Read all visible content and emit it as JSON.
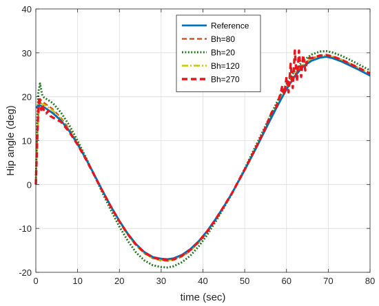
{
  "chart_data": {
    "type": "line",
    "title": "",
    "xlabel": "time (sec)",
    "ylabel": "Hip angle (deg)",
    "xlim": [
      0,
      80
    ],
    "ylim": [
      -20,
      40
    ],
    "xticks": [
      "0",
      "10",
      "20",
      "30",
      "40",
      "50",
      "60",
      "70",
      "80"
    ],
    "yticks": [
      "-20",
      "-10",
      "0",
      "10",
      "20",
      "30",
      "40"
    ],
    "grid": true,
    "legend_position": "top-center",
    "series": [
      {
        "name": "Reference",
        "color": "#0072BD",
        "style": "solid",
        "x": [
          0,
          0.5,
          1,
          2,
          4,
          6,
          8,
          10,
          12,
          14,
          16,
          18,
          20,
          22,
          24,
          26,
          28,
          30,
          31.5,
          33,
          35,
          37,
          39,
          41,
          43,
          45,
          47,
          50,
          53,
          56,
          58,
          60,
          62,
          64,
          66,
          68,
          69.5,
          71,
          73,
          75,
          77,
          80
        ],
        "y": [
          17.5,
          17.8,
          18,
          17.6,
          16.3,
          14.6,
          12.2,
          9.2,
          5.8,
          2.2,
          -1.5,
          -5,
          -8.3,
          -11.2,
          -13.6,
          -15.4,
          -16.5,
          -16.9,
          -17,
          -16.8,
          -16,
          -14.7,
          -12.9,
          -10.6,
          -7.9,
          -5,
          -1.9,
          3.3,
          8.8,
          14.5,
          18.2,
          21.7,
          24.7,
          26.9,
          28.2,
          28.9,
          29.1,
          28.8,
          28.1,
          27.2,
          26.3,
          24.8
        ]
      },
      {
        "name": "Bh=80",
        "color": "#D95319",
        "style": "dashed",
        "x": [
          0,
          0.3,
          0.6,
          1,
          2,
          4,
          6,
          8,
          10,
          12,
          14,
          16,
          18,
          20,
          22,
          24,
          26,
          28,
          30,
          31.5,
          33,
          35,
          37,
          39,
          41,
          43,
          45,
          47,
          50,
          53,
          56,
          58,
          60,
          62,
          64,
          66,
          68,
          69.5,
          71,
          73,
          75,
          77,
          80
        ],
        "y": [
          0,
          10,
          16,
          19.5,
          18.6,
          17.2,
          15.2,
          12.6,
          9.5,
          6,
          2.3,
          -1.4,
          -5,
          -8.4,
          -11.4,
          -13.9,
          -15.7,
          -16.8,
          -17.3,
          -17.4,
          -17.2,
          -16.4,
          -15.1,
          -13.2,
          -10.9,
          -8.1,
          -5.1,
          -2,
          3.3,
          9,
          14.8,
          18.6,
          22.1,
          25.1,
          27.4,
          28.7,
          29.4,
          29.5,
          29.2,
          28.5,
          27.6,
          26.7,
          25.3
        ]
      },
      {
        "name": "Bh=20",
        "color": "#1E7B1E",
        "style": "dotted",
        "x": [
          0,
          0.3,
          0.6,
          1,
          1.5,
          2,
          4,
          6,
          8,
          10,
          12,
          14,
          16,
          18,
          20,
          22,
          24,
          26,
          28,
          30,
          31.5,
          33,
          35,
          37,
          39,
          41,
          43,
          45,
          47,
          50,
          53,
          56,
          58,
          60,
          62,
          64,
          66,
          68,
          69.5,
          71,
          73,
          75,
          77,
          80
        ],
        "y": [
          0,
          13,
          21,
          23,
          20.5,
          19.8,
          18.6,
          16.4,
          13.5,
          10,
          6.1,
          2.1,
          -2,
          -5.9,
          -9.6,
          -12.8,
          -15.5,
          -17.3,
          -18.4,
          -18.8,
          -18.9,
          -18.6,
          -17.7,
          -16.2,
          -14.1,
          -11.5,
          -8.5,
          -5.3,
          -2,
          3.6,
          9.5,
          15.4,
          19.3,
          22.9,
          26,
          28.2,
          29.6,
          30.3,
          30.4,
          30.1,
          29.4,
          28.5,
          27.5,
          26
        ]
      },
      {
        "name": "Bh=120",
        "color": "#C8C800",
        "style": "dashdot",
        "x": [
          0,
          0.3,
          0.6,
          1,
          2,
          4,
          6,
          8,
          10,
          12,
          14,
          16,
          18,
          20,
          22,
          24,
          26,
          28,
          30,
          31.5,
          33,
          35,
          37,
          39,
          41,
          43,
          45,
          47,
          50,
          53,
          56,
          58,
          60,
          62,
          64,
          66,
          68,
          69.5,
          71,
          73,
          75,
          77,
          80
        ],
        "y": [
          0,
          9,
          15,
          18.5,
          18.2,
          16.9,
          14.9,
          12.4,
          9.4,
          5.9,
          2.2,
          -1.5,
          -5.1,
          -8.5,
          -11.5,
          -13.9,
          -15.7,
          -16.8,
          -17.2,
          -17.3,
          -17.1,
          -16.3,
          -15,
          -13.1,
          -10.8,
          -8,
          -5,
          -1.9,
          3.4,
          9,
          14.7,
          18.5,
          22,
          25,
          27.3,
          28.6,
          29.3,
          29.4,
          29.1,
          28.4,
          27.5,
          26.6,
          25.2
        ]
      },
      {
        "name": "Bh=270",
        "color": "#E8141E",
        "style": "dashed-thick",
        "x": [
          0,
          0.2,
          0.4,
          0.6,
          0.8,
          1,
          1.3,
          1.6,
          2,
          2.5,
          3,
          3.5,
          4,
          6,
          8,
          10,
          12,
          14,
          16,
          18,
          20,
          22,
          24,
          26,
          28,
          30,
          31.5,
          33,
          35,
          37,
          39,
          41,
          43,
          45,
          47,
          50,
          53,
          55,
          56.5,
          57.5,
          58.5,
          59,
          59.5,
          60,
          60.5,
          61,
          61.5,
          62,
          62.5,
          63,
          63.5,
          64,
          64.5,
          65,
          66,
          68,
          69.5,
          71,
          73,
          75,
          77,
          80
        ],
        "y": [
          0,
          6,
          12,
          17,
          20,
          18.5,
          17,
          18.2,
          16.5,
          16.2,
          16.8,
          15.6,
          15.3,
          14.3,
          12,
          9.1,
          5.7,
          2.1,
          -1.6,
          -5.1,
          -8.4,
          -11.3,
          -13.7,
          -15.5,
          -16.6,
          -17.1,
          -17.2,
          -17,
          -16.2,
          -14.9,
          -13,
          -10.7,
          -8,
          -5,
          -1.9,
          3.4,
          9,
          13,
          16.5,
          17.5,
          20.5,
          22.5,
          20.5,
          24.5,
          21,
          27.5,
          22,
          30.5,
          23.5,
          30.5,
          24.5,
          29.5,
          26,
          28.8,
          28.8,
          29.4,
          29.5,
          29.2,
          28.5,
          27.6,
          26.7,
          25.3
        ]
      }
    ]
  }
}
